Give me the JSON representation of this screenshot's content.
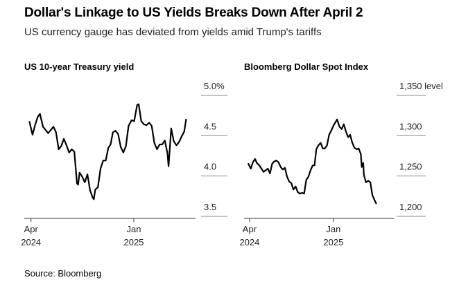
{
  "header": {
    "title": "Dollar's Linkage to US Yields Breaks Down After April 2",
    "subtitle": "US currency gauge has deviated from yields amid Trump's tariffs"
  },
  "footer": {
    "source": "Source: Bloomberg"
  },
  "chart_data": [
    {
      "type": "line",
      "title": "US 10-year Treasury yield",
      "unit": "%",
      "ylim": [
        3.5,
        5.0
      ],
      "yticks": [
        3.5,
        4.0,
        4.5,
        5.0
      ],
      "ytick_labels": [
        "3.5",
        "4.0",
        "4.5",
        "5.0%"
      ],
      "xlim": [
        "2024-03-14",
        "2025-06-30"
      ],
      "xticks": [
        {
          "date": "2024-04-01",
          "month": "Apr",
          "year": "2024"
        },
        {
          "date": "2025-01-01",
          "month": "Jan",
          "year": "2025"
        }
      ],
      "series": [
        {
          "name": "US 10-year Treasury yield",
          "x": [
            "2024-03-28",
            "2024-04-05",
            "2024-04-12",
            "2024-04-19",
            "2024-04-25",
            "2024-05-03",
            "2024-05-10",
            "2024-05-17",
            "2024-05-24",
            "2024-05-31",
            "2024-06-07",
            "2024-06-14",
            "2024-06-21",
            "2024-06-28",
            "2024-07-05",
            "2024-07-12",
            "2024-07-19",
            "2024-07-26",
            "2024-08-02",
            "2024-08-05",
            "2024-08-09",
            "2024-08-16",
            "2024-08-23",
            "2024-08-30",
            "2024-09-06",
            "2024-09-13",
            "2024-09-16",
            "2024-09-20",
            "2024-09-27",
            "2024-10-04",
            "2024-10-11",
            "2024-10-18",
            "2024-10-25",
            "2024-10-31",
            "2024-11-06",
            "2024-11-13",
            "2024-11-20",
            "2024-11-27",
            "2024-12-04",
            "2024-12-11",
            "2024-12-18",
            "2024-12-26",
            "2025-01-02",
            "2025-01-10",
            "2025-01-14",
            "2025-01-21",
            "2025-01-28",
            "2025-02-04",
            "2025-02-11",
            "2025-02-18",
            "2025-02-25",
            "2025-03-04",
            "2025-03-11",
            "2025-03-18",
            "2025-03-25",
            "2025-04-01",
            "2025-04-04",
            "2025-04-09",
            "2025-04-11",
            "2025-04-18",
            "2025-04-25",
            "2025-05-02",
            "2025-05-09",
            "2025-05-16",
            "2025-05-21"
          ],
          "y": [
            4.56,
            4.4,
            4.52,
            4.62,
            4.66,
            4.5,
            4.46,
            4.42,
            4.46,
            4.5,
            4.43,
            4.22,
            4.26,
            4.35,
            4.27,
            4.18,
            4.22,
            4.19,
            3.8,
            3.78,
            3.93,
            3.88,
            3.81,
            3.91,
            3.71,
            3.62,
            3.6,
            3.72,
            3.75,
            3.98,
            4.08,
            4.08,
            4.24,
            4.28,
            4.43,
            4.45,
            4.41,
            4.25,
            4.18,
            4.26,
            4.51,
            4.58,
            4.57,
            4.77,
            4.78,
            4.57,
            4.53,
            4.52,
            4.55,
            4.51,
            4.3,
            4.22,
            4.28,
            4.28,
            4.33,
            4.17,
            4.01,
            4.34,
            4.48,
            4.32,
            4.27,
            4.31,
            4.38,
            4.44,
            4.59
          ]
        }
      ]
    },
    {
      "type": "line",
      "title": "Bloomberg Dollar Spot Index",
      "unit": "level",
      "ylim": [
        1200,
        1350
      ],
      "yticks": [
        1200,
        1250,
        1300,
        1350
      ],
      "ytick_labels": [
        "1,200",
        "1,250",
        "1,300",
        "1,350 level"
      ],
      "xlim": [
        "2024-03-14",
        "2025-06-30"
      ],
      "xticks": [
        {
          "date": "2024-04-01",
          "month": "Apr",
          "year": "2024"
        },
        {
          "date": "2025-01-01",
          "month": "Jan",
          "year": "2025"
        }
      ],
      "series": [
        {
          "name": "Bloomberg Dollar Spot Index",
          "x": [
            "2024-03-28",
            "2024-04-05",
            "2024-04-12",
            "2024-04-19",
            "2024-04-25",
            "2024-05-03",
            "2024-05-10",
            "2024-05-17",
            "2024-05-24",
            "2024-05-31",
            "2024-06-07",
            "2024-06-14",
            "2024-06-21",
            "2024-06-28",
            "2024-07-05",
            "2024-07-12",
            "2024-07-19",
            "2024-07-26",
            "2024-08-02",
            "2024-08-09",
            "2024-08-16",
            "2024-08-23",
            "2024-08-30",
            "2024-09-06",
            "2024-09-13",
            "2024-09-20",
            "2024-09-27",
            "2024-10-04",
            "2024-10-11",
            "2024-10-18",
            "2024-10-25",
            "2024-10-31",
            "2024-11-06",
            "2024-11-13",
            "2024-11-20",
            "2024-11-27",
            "2024-12-04",
            "2024-12-11",
            "2024-12-18",
            "2024-12-26",
            "2025-01-02",
            "2025-01-10",
            "2025-01-13",
            "2025-01-21",
            "2025-01-28",
            "2025-02-04",
            "2025-02-11",
            "2025-02-18",
            "2025-02-25",
            "2025-03-04",
            "2025-03-11",
            "2025-03-18",
            "2025-03-25",
            "2025-04-01",
            "2025-04-04",
            "2025-04-09",
            "2025-04-11",
            "2025-04-18",
            "2025-04-25",
            "2025-05-02",
            "2025-05-09",
            "2025-05-16",
            "2025-05-21"
          ],
          "y": [
            1254,
            1248,
            1256,
            1260,
            1255,
            1252,
            1248,
            1244,
            1246,
            1248,
            1242,
            1254,
            1257,
            1258,
            1256,
            1250,
            1247,
            1249,
            1238,
            1232,
            1230,
            1222,
            1226,
            1219,
            1217,
            1218,
            1217,
            1234,
            1238,
            1246,
            1252,
            1252,
            1272,
            1277,
            1280,
            1273,
            1273,
            1277,
            1290,
            1296,
            1302,
            1307,
            1309,
            1300,
            1297,
            1303,
            1294,
            1287,
            1290,
            1280,
            1274,
            1272,
            1273,
            1266,
            1250,
            1255,
            1240,
            1231,
            1233,
            1231,
            1215,
            1209,
            1205
          ]
        }
      ]
    }
  ]
}
